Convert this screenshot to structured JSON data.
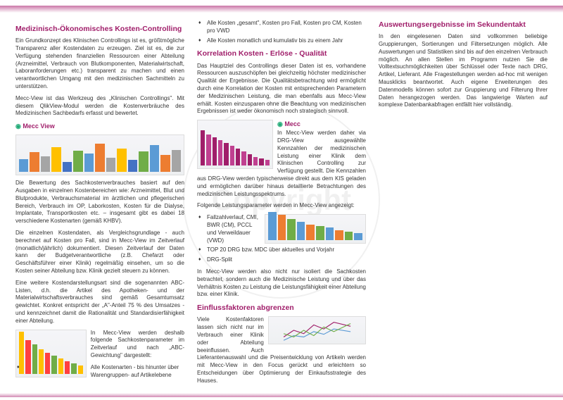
{
  "watermark": "Copyright",
  "col1": {
    "h1": "Medizinisch-Ökonomisches Kosten-Controlling",
    "p1": "Ein Grundkonzept des Klinischen Controllings ist es, größtmögliche Transparenz aller Kostendaten zu erzeugen. Ziel ist es, die zur Verfügung stehenden finanziellen Ressourcen einer Abteilung (Arzneimittel, Verbrauch von Blutkomponenten, Materialwirtschaft, Laboranforderungen etc.) transparent zu machen und einen verantwortlichen Umgang mit den medizinischen Sachmitteln zu unterstützen.",
    "p2": "Mecc-View ist das Werkzeug des „Klinischen Controllings\". Mit diesem QlikView-Modul werden die Kostenverbräuche des Medizinischen Sachbedarfs erfasst und bewertet.",
    "logo": "Mecc View",
    "p3": "Die Bewertung des Sachkostenverbrauches basiert auf den Ausgaben in einzelnen Kostenbereichen wie: Arzneimittel, Blut und Blutprodukte, Verbrauchsmaterial im ärztlichen und pflegerischen Bereich, Verbrauch im OP, Laborkosten, Kosten für die Dialyse, Implantate, Transportkosten etc. – insgesamt gibt es dabei 18 verschiedene Kostenarten (gemäß KHBV).",
    "p4": "Die einzelnen Kostendaten, als Vergleichsgrundlage - auch berechnet auf Kosten pro Fall, sind in Mecc-View im Zeitverlauf (monatlich/jährlich) dokumentiert. Diesen Zeitverlauf der Daten kann der Budgetverantwortliche (z.B. Chefarzt oder Geschäftsführer einer Klinik) regelmäßig einsehen, um so die Kosten seiner Abteilung bzw. Klinik gezielt steuern zu können."
  },
  "col2": {
    "p1": "Eine weitere Kostendarstellungsart sind die sogenannten ABC-Listen, d.h. die Artikel des Apotheken- und der Materialwirtschaftsverbrauches sind gemäß Gesamtumsatz gewichtet. Konkret entspricht der „A\"-Anteil 75 % des Umsatzes - und kennzeichnet damit die Rationalität und Standardisierfähigkeit einer Abteilung.",
    "p2": "In Mecc-View werden deshalb folgende Sachkostenparameter im Zeitverlauf und nach „ABC-Gewichtung\" dargestellt:",
    "li1": "Alle Kostenarten - bis hinunter über Warengruppen- auf Artikelebene",
    "li2": "Alle Kosten „gesamt\", Kosten pro Fall, Kosten pro CM, Kosten pro VWD",
    "li3": "Alle Kosten monatlich und kumulativ bis zu einem Jahr",
    "h2": "Korrelation Kosten - Erlöse - Qualität",
    "p3": "Das Hauptziel des Controllings dieser Daten ist es, vorhandene Ressourcen auszuschöpfen bei gleichzeitig höchster medizinischer Qualität der Ergebnisse. Die Qualitätsbetrachtung wird ermöglicht durch eine Korrelation der Kosten mit entsprechenden Parametern der Medizinischen Leistung, die man ebenfalls aus Mecc-View erhält. Kosten einzusparen ohne die Beachtung von medizinischen Ergebnissen ist weder ökonomisch noch strategisch sinnvoll.",
    "p4": "In Mecc-View werden daher via DRG-View ausgewählte Kennzahlen der medizinischen Leistung einer Klinik dem Klinischen Controlling zur Verfügung gestellt. Die Kennzahlen aus DRG-View werden typischerweise direkt aus dem KIS geladen und ermöglichen darüber hinaus detaillierte Betrachtungen des medizinischen Leistungsspektrums."
  },
  "col3": {
    "p1": "Folgende Leistungsparameter werden in Mecc-View angezeigt:",
    "li1": "Fallzahlverlauf, CMI, BWR (CM), PCCL und Verweildauer (VWD)",
    "li2": "TOP 20 DRG bzw. MDC über aktuelles und Vorjahr",
    "li3": "DRG-Split",
    "p2": "In Mecc-View werden also nicht nur isoliert die Sachkosten betrachtet, sondern auch die Medizinische Leistung und über das Verhältnis Kosten zu Leistung die Leistungsfähigkeit einer Abteilung bzw. einer Klinik.",
    "h2": "Einflussfaktoren abgrenzen",
    "p3": "Viele Kostenfaktoren lassen sich nicht nur im Verbrauch einer Klinik oder Abteilung beeinflussen. Auch Lieferantenauswahl und die Preisentwicklung von Artikeln werden mit Mecc-View in den Focus gerückt und erleichtern so Entscheidungen über Optimierung der Einkaufsstrategie des Hauses.",
    "h3": "Auswertungsergebnisse im Sekundentakt",
    "p4": "In den eingelesenen Daten sind vollkommen beliebige Gruppierungen, Sortierungen und Filtersetzungen möglich. Alle Auswertungen und Statistiken sind bis auf den einzelnen Verbrauch möglich. An allen Stellen im Programm nutzen Sie die Volltextsuchmöglichkeiten über Schlüssel oder Texte nach DRG, Artikel, Lieferant. Alle Fragestellungen werden ad-hoc mit wenigen Mausklicks beantwortet. Auch eigene Erweiterungen des Datenmodells können sofort zur Gruppierung und Filterung Ihrer Daten herangezogen werden. Das langwierige Warten auf komplexe Datenbankabfragen entfällt hier vollständig."
  },
  "charts": {
    "bars1": [
      18,
      28,
      22,
      35,
      14,
      30,
      26,
      40,
      20,
      33,
      17,
      29,
      38,
      24,
      31
    ],
    "colors1": [
      "#5b9bd5",
      "#ed7d31",
      "#a5a5a5",
      "#ffc000",
      "#4472c4",
      "#70ad47",
      "#5b9bd5",
      "#ed7d31",
      "#a5a5a5",
      "#ffc000",
      "#4472c4",
      "#70ad47",
      "#5b9bd5",
      "#ed7d31",
      "#a5a5a5"
    ],
    "bars2": [
      60,
      48,
      42,
      35,
      30,
      26,
      22,
      18,
      15,
      12
    ],
    "colors2": [
      "#ffc000",
      "#ff4040",
      "#70ad47",
      "#ffc000",
      "#ff4040",
      "#70ad47",
      "#ffc000",
      "#ff4040",
      "#70ad47",
      "#ffc000"
    ],
    "bars3": [
      50,
      44,
      40,
      36,
      32,
      28,
      24,
      20,
      16,
      12,
      10,
      8
    ],
    "colors3": [
      "#a01e6a",
      "#c04090",
      "#a01e6a",
      "#c04090",
      "#a01e6a",
      "#c04090",
      "#a01e6a",
      "#c04090",
      "#a01e6a",
      "#c04090",
      "#a01e6a",
      "#c04090"
    ],
    "bars4": [
      40,
      36,
      30,
      26,
      22,
      20,
      18,
      14,
      12,
      10
    ],
    "colors4": [
      "#5b9bd5",
      "#ed7d31",
      "#70ad47",
      "#5b9bd5",
      "#ed7d31",
      "#70ad47",
      "#5b9bd5",
      "#ed7d31",
      "#70ad47",
      "#5b9bd5"
    ]
  }
}
